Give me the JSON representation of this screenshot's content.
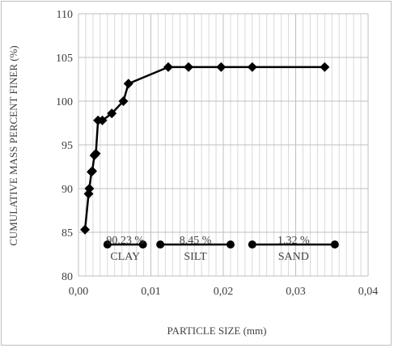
{
  "chart_data": {
    "type": "line",
    "title": "",
    "xlabel": "PARTICLE SIZE (mm)",
    "ylabel": "CUMULATIVE MASS PERCENT FINER (%)",
    "xlim": [
      0,
      0.04
    ],
    "ylim": [
      80,
      110
    ],
    "x_ticks": [
      "0,00",
      "0,01",
      "0,02",
      "0,03",
      "0,04"
    ],
    "x_tick_values": [
      0,
      0.01,
      0.02,
      0.03,
      0.04
    ],
    "y_ticks": [
      "80",
      "85",
      "90",
      "95",
      "100",
      "105",
      "110"
    ],
    "y_tick_values": [
      80,
      85,
      90,
      95,
      100,
      105,
      110
    ],
    "grid": true,
    "legend": "none",
    "series": [
      {
        "x": [
          0.0009,
          0.0014,
          0.0015,
          0.0018,
          0.0019,
          0.0022,
          0.0024,
          0.0027,
          0.0033,
          0.0046,
          0.0062,
          0.0069,
          0.0124,
          0.0152,
          0.0197,
          0.024,
          0.034
        ],
        "y": [
          85.3,
          89.4,
          90.0,
          91.9,
          92.0,
          93.8,
          94.0,
          97.8,
          97.8,
          98.6,
          100.0,
          102.0,
          103.9,
          103.9,
          103.9,
          103.9,
          103.9
        ],
        "marker": "diamond",
        "color": "#000000"
      }
    ],
    "fractions": [
      {
        "name": "CLAY",
        "percent": "90,23 %",
        "x_start": 0.004,
        "x_end": 0.0089,
        "y": 83.6
      },
      {
        "name": "SILT",
        "percent": "8,45 %",
        "x_start": 0.0113,
        "x_end": 0.021,
        "y": 83.6
      },
      {
        "name": "SAND",
        "percent": "1,32 %",
        "x_start": 0.024,
        "x_end": 0.0354,
        "y": 83.6
      }
    ]
  }
}
